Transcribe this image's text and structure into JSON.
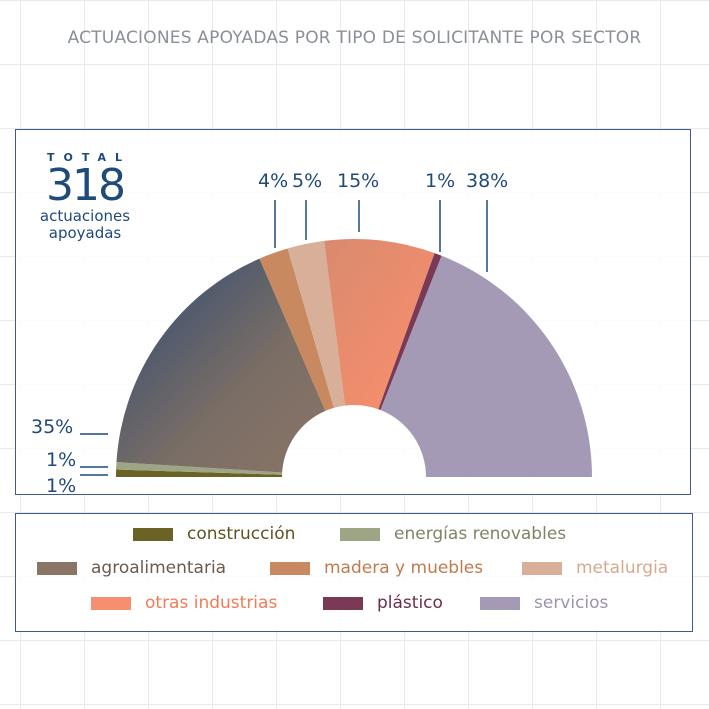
{
  "title": "ACTUACIONES APOYADAS POR TIPO DE SOLICITANTE POR SECTOR",
  "total": {
    "label": "TOTAL",
    "value": "318",
    "caption_line1": "actuaciones",
    "caption_line2": "apoyadas"
  },
  "chart_data": {
    "type": "pie",
    "variant": "semicircle-donut",
    "title": "ACTUACIONES APOYADAS POR TIPO DE SOLICITANTE POR SECTOR",
    "series": [
      {
        "name": "construcción",
        "value": 1,
        "label": "1%",
        "color": "#6b6326",
        "text_color": "#5c5420"
      },
      {
        "name": "energías renovables",
        "value": 1,
        "label": "1%",
        "color": "#9ea585",
        "text_color": "#7e8468"
      },
      {
        "name": "agroalimentaria",
        "value": 35,
        "label": "35%",
        "color": "#8a7466",
        "text_color": "#6b5a50",
        "gradient_to": "#2c4a73"
      },
      {
        "name": "madera y muebles",
        "value": 4,
        "label": "4%",
        "color": "#c88860",
        "text_color": "#c17a4e"
      },
      {
        "name": "metalurgia",
        "value": 5,
        "label": "5%",
        "color": "#d8b09a",
        "text_color": "#d6a98f"
      },
      {
        "name": "otras industrias",
        "value": 15,
        "label": "15%",
        "color": "#f68f6f",
        "text_color": "#f07c57"
      },
      {
        "name": "plástico",
        "value": 1,
        "label": "1%",
        "color": "#7a3a55",
        "text_color": "#6e2e48"
      },
      {
        "name": "servicios",
        "value": 38,
        "label": "38%",
        "color": "#a59ab5",
        "text_color": "#9d93ad"
      }
    ]
  },
  "legend_rows": [
    [
      "construcción",
      "energías renovables"
    ],
    [
      "agroalimentaria",
      "madera y muebles",
      "metalurgia"
    ],
    [
      "otras industrias",
      "plástico",
      "servicios"
    ]
  ]
}
